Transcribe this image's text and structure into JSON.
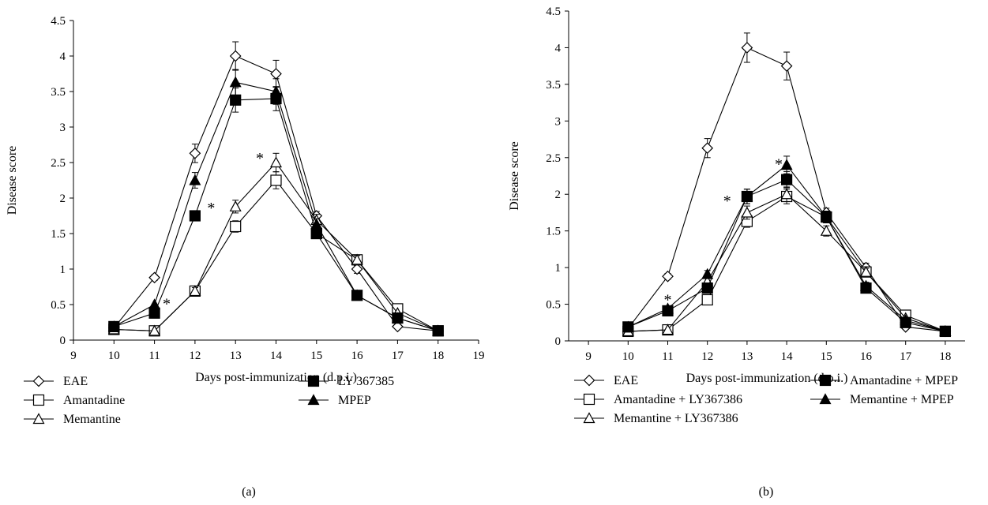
{
  "chart_data": [
    {
      "type": "line",
      "panel_label": "(a)",
      "xlabel": "Days post-immunization (d.p.i.)",
      "ylabel": "Disease score",
      "xlim": [
        9,
        19
      ],
      "ylim": [
        0,
        4.5
      ],
      "xticks": [
        9,
        10,
        11,
        12,
        13,
        14,
        15,
        16,
        17,
        18,
        19
      ],
      "yticks": [
        0,
        0.5,
        1,
        1.5,
        2,
        2.5,
        3,
        3.5,
        4,
        4.5
      ],
      "x": [
        10,
        11,
        12,
        13,
        14,
        15,
        16,
        17,
        18
      ],
      "series": [
        {
          "name": "EAE",
          "marker": "diamond-open",
          "values": [
            0.17,
            0.88,
            2.63,
            4.0,
            3.75,
            1.75,
            1.0,
            0.19,
            0.13
          ],
          "errors": [
            0.02,
            0.04,
            0.13,
            0.2,
            0.19,
            0.06,
            0.06,
            0.02,
            0.02
          ]
        },
        {
          "name": "Amantadine",
          "marker": "square-open",
          "values": [
            0.15,
            0.13,
            0.69,
            1.6,
            2.25,
            1.5,
            1.13,
            0.44,
            0.13
          ],
          "errors": [
            0.02,
            0.02,
            0.05,
            0.08,
            0.12,
            0.07,
            0.06,
            0.03,
            0.02
          ]
        },
        {
          "name": "Memantine",
          "marker": "triangle-open",
          "values": [
            0.15,
            0.13,
            0.69,
            1.88,
            2.5,
            1.69,
            1.13,
            0.38,
            0.13
          ],
          "errors": [
            0.02,
            0.02,
            0.05,
            0.09,
            0.13,
            0.08,
            0.06,
            0.03,
            0.02
          ]
        },
        {
          "name": "LY 367385",
          "marker": "square-filled",
          "values": [
            0.19,
            0.38,
            1.75,
            3.38,
            3.4,
            1.5,
            0.63,
            0.31,
            0.13
          ],
          "errors": [
            0.02,
            0.03,
            0.07,
            0.17,
            0.17,
            0.07,
            0.04,
            0.03,
            0.02
          ]
        },
        {
          "name": "MPEP",
          "marker": "triangle-filled",
          "values": [
            0.19,
            0.5,
            2.25,
            3.63,
            3.5,
            1.63,
            0.63,
            0.31,
            0.13
          ],
          "errors": [
            0.02,
            0.03,
            0.11,
            0.18,
            0.18,
            0.08,
            0.04,
            0.03,
            0.02
          ]
        }
      ],
      "annotations": [
        {
          "text": "*",
          "x": 11.3,
          "y": 0.55
        },
        {
          "text": "*",
          "x": 12.4,
          "y": 1.9
        },
        {
          "text": "*",
          "x": 13.6,
          "y": 2.6
        }
      ],
      "legend": {
        "placement": "bottom",
        "columns": [
          [
            "EAE",
            "Amantadine",
            "Memantine"
          ],
          [
            "LY 367385",
            "MPEP"
          ]
        ]
      }
    },
    {
      "type": "line",
      "panel_label": "(b)",
      "xlabel": "Days post-immunization (d.p.i.)",
      "ylabel": "Disease score",
      "xlim": [
        8.5,
        18.5
      ],
      "ylim": [
        0,
        4.5
      ],
      "xticks": [
        9,
        10,
        11,
        12,
        13,
        14,
        15,
        16,
        17,
        18
      ],
      "yticks": [
        0,
        0.5,
        1,
        1.5,
        2,
        2.5,
        3,
        3.5,
        4,
        4.5
      ],
      "x": [
        10,
        11,
        12,
        13,
        14,
        15,
        16,
        17,
        18
      ],
      "series": [
        {
          "name": "EAE",
          "marker": "diamond-open",
          "values": [
            0.17,
            0.88,
            2.63,
            4.0,
            3.75,
            1.75,
            1.0,
            0.19,
            0.13
          ],
          "errors": [
            0.02,
            0.04,
            0.13,
            0.2,
            0.19,
            0.06,
            0.06,
            0.02,
            0.02
          ]
        },
        {
          "name": "Amantadine + LY367386",
          "marker": "square-open",
          "values": [
            0.13,
            0.15,
            0.56,
            1.63,
            1.97,
            1.69,
            0.94,
            0.35,
            0.13
          ],
          "errors": [
            0.02,
            0.02,
            0.04,
            0.08,
            0.1,
            0.08,
            0.05,
            0.03,
            0.02
          ]
        },
        {
          "name": "Memantine + LY367386",
          "marker": "triangle-open",
          "values": [
            0.13,
            0.15,
            0.81,
            1.75,
            2.0,
            1.5,
            0.94,
            0.31,
            0.13
          ],
          "errors": [
            0.02,
            0.02,
            0.05,
            0.09,
            0.1,
            0.07,
            0.05,
            0.03,
            0.02
          ]
        },
        {
          "name": "Amantadine + MPEP",
          "marker": "square-filled",
          "values": [
            0.19,
            0.41,
            0.72,
            1.97,
            2.2,
            1.69,
            0.72,
            0.25,
            0.13
          ],
          "errors": [
            0.02,
            0.03,
            0.05,
            0.1,
            0.11,
            0.08,
            0.05,
            0.03,
            0.02
          ]
        },
        {
          "name": "Memantine + MPEP",
          "marker": "triangle-filled",
          "values": [
            0.19,
            0.44,
            0.91,
            1.97,
            2.4,
            1.69,
            0.75,
            0.28,
            0.13
          ],
          "errors": [
            0.02,
            0.03,
            0.05,
            0.1,
            0.12,
            0.08,
            0.05,
            0.03,
            0.02
          ]
        }
      ],
      "annotations": [
        {
          "text": "*",
          "x": 11.0,
          "y": 0.6
        },
        {
          "text": "*",
          "x": 12.5,
          "y": 1.95
        },
        {
          "text": "*",
          "x": 13.8,
          "y": 2.45
        }
      ],
      "legend": {
        "placement": "bottom",
        "columns": [
          [
            "EAE",
            "Amantadine + LY367386",
            "Memantine + LY367386"
          ],
          [
            "Amantadine + MPEP",
            "Memantine + MPEP"
          ]
        ]
      }
    }
  ]
}
